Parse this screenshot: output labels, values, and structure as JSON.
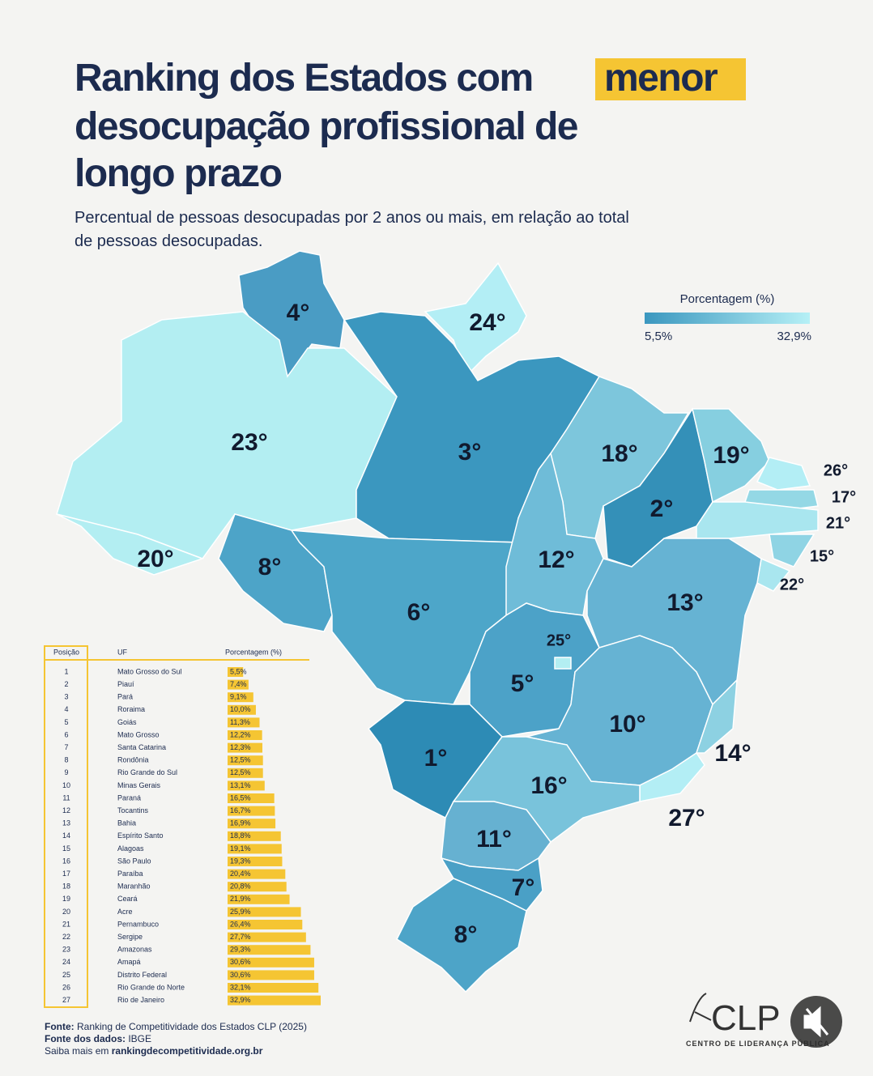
{
  "header": {
    "title_lines": [
      "Ranking dos Estados com",
      "menor",
      "desocupação profissional de",
      "longo prazo"
    ],
    "subtitle_lines": [
      "Percentual de pessoas desocupadas por 2 anos ou mais, em relação ao total",
      "de pessoas desocupadas."
    ]
  },
  "legend": {
    "title": "Porcentagem (%)",
    "min": {
      "value": 5.5,
      "label": "5,5%"
    },
    "max": {
      "value": 32.9,
      "label": "32,9%"
    }
  },
  "map": {
    "labels": [
      "4°",
      "24°",
      "23°",
      "3°",
      "20°",
      "8°",
      "6°",
      "18°",
      "2°",
      "19°",
      "26°",
      "17°",
      "21°",
      "15°",
      "22°",
      "12°",
      "13°",
      "5°",
      "25°",
      "10°",
      "14°",
      "27°",
      "1°",
      "16°",
      "11°",
      "7°",
      "8°"
    ]
  },
  "chart_data": {
    "type": "bar",
    "columns": [
      "Posição",
      "UF",
      "Porcentagem (%)"
    ],
    "positions": [
      1,
      2,
      3,
      4,
      5,
      6,
      7,
      8,
      9,
      10,
      11,
      12,
      13,
      14,
      15,
      16,
      17,
      18,
      19,
      20,
      21,
      22,
      23,
      24,
      25,
      26,
      27
    ],
    "categories": [
      "Mato Grosso do Sul",
      "Piauí",
      "Pará",
      "Roraima",
      "Goiás",
      "Mato Grosso",
      "Santa Catarina",
      "Rondônia",
      "Rio Grande do Sul",
      "Minas Gerais",
      "Paraná",
      "Tocantins",
      "Bahia",
      "Espírito Santo",
      "Alagoas",
      "São Paulo",
      "Paraíba",
      "Maranhão",
      "Ceará",
      "Acre",
      "Pernambuco",
      "Sergipe",
      "Amazonas",
      "Amapá",
      "Distrito Federal",
      "Rio Grande do Norte",
      "Rio de Janeiro"
    ],
    "values": [
      5.5,
      7.4,
      9.1,
      10.0,
      11.3,
      12.2,
      12.3,
      12.5,
      12.5,
      13.1,
      16.5,
      16.7,
      16.9,
      18.8,
      19.1,
      19.3,
      20.4,
      20.8,
      21.9,
      25.9,
      26.4,
      27.7,
      29.3,
      30.6,
      30.6,
      32.1,
      32.9
    ],
    "value_labels": [
      "5,5%",
      "7,4%",
      "9,1%",
      "10,0%",
      "11,3%",
      "12,2%",
      "12,3%",
      "12,5%",
      "12,5%",
      "13,1%",
      "16,5%",
      "16,7%",
      "16,9%",
      "18,8%",
      "19,1%",
      "19,3%",
      "20,4%",
      "20,8%",
      "21,9%",
      "25,9%",
      "26,4%",
      "27,7%",
      "29,3%",
      "30,6%",
      "30,6%",
      "32,1%",
      "32,9%"
    ],
    "color": "#f5c533"
  },
  "footer": {
    "source_label": "Fonte:",
    "source": "Ranking de Competitividade dos Estados CLP (2025)",
    "data_label": "Fonte dos dados:",
    "data_source": "IBGE",
    "more_label": "Saiba mais em",
    "url": "rankingdecompetitividade.org.br"
  },
  "logo": {
    "name": "CLP",
    "full_name": "CENTRO DE LIDERANÇA PÚBLICA"
  }
}
